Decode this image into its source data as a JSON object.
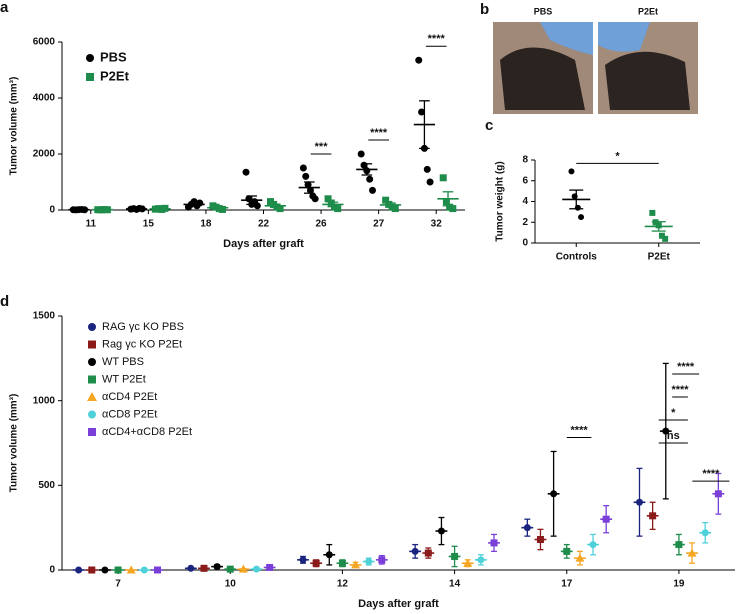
{
  "panel_b": {
    "label": "b",
    "photos": [
      "PBS",
      "P2Et"
    ]
  },
  "chart_data": [
    {
      "type": "dot",
      "label": "a",
      "x_label": "Days after graft",
      "y_label": "Tumor volume (mm³)",
      "categories": [
        "11",
        "15",
        "18",
        "22",
        "26",
        "27",
        "32"
      ],
      "ylim": [
        0,
        6000
      ],
      "yticks": [
        0,
        2000,
        4000,
        6000
      ],
      "legend": "upper left",
      "series": [
        {
          "name": "PBS",
          "color": "#000000",
          "marker": "circle",
          "values": [
            10,
            40,
            200,
            350,
            800,
            1450,
            3050
          ],
          "errors": [
            5,
            10,
            40,
            150,
            200,
            200,
            850
          ],
          "points": [
            [
              10,
              5,
              15,
              20,
              10
            ],
            [
              30,
              50,
              20,
              60,
              40
            ],
            [
              100,
              200,
              300,
              150,
              250
            ],
            [
              1350,
              400,
              200,
              300,
              150
            ],
            [
              1500,
              1200,
              900,
              700,
              500,
              400
            ],
            [
              2000,
              1600,
              1400,
              1100,
              700
            ],
            [
              5350,
              3500,
              2200,
              1450,
              1000
            ]
          ]
        },
        {
          "name": "P2Et",
          "color": "#1e8c4a",
          "marker": "square",
          "values": [
            10,
            40,
            80,
            150,
            200,
            180,
            400
          ],
          "errors": [
            5,
            10,
            30,
            60,
            80,
            70,
            250
          ],
          "points": [
            [
              10,
              5,
              15,
              10
            ],
            [
              30,
              50,
              20,
              60
            ],
            [
              150,
              100,
              50,
              20
            ],
            [
              300,
              200,
              100,
              50
            ],
            [
              400,
              250,
              100,
              50
            ],
            [
              350,
              200,
              100,
              50
            ],
            [
              1150,
              300,
              100,
              50
            ]
          ]
        }
      ],
      "annotations": [
        {
          "text": "***",
          "category": 4
        },
        {
          "text": "****",
          "category": 5
        },
        {
          "text": "****",
          "category": 6
        }
      ]
    },
    {
      "type": "dot",
      "label": "c",
      "y_label": "Tumor weight (g)",
      "categories": [
        "Controls",
        "P2Et"
      ],
      "ylim": [
        0,
        8
      ],
      "yticks": [
        0,
        2,
        4,
        6,
        8
      ],
      "series": [
        {
          "colors": [
            "#000000",
            "#1e8c4a"
          ],
          "markers": [
            "circle",
            "square"
          ],
          "values": [
            4.2,
            1.6
          ],
          "errors": [
            0.9,
            0.45
          ],
          "points": [
            [
              6.9,
              4.5,
              3.4,
              2.5
            ],
            [
              2.9,
              2.0,
              1.7,
              0.7,
              0.4
            ]
          ]
        }
      ],
      "annotations": [
        {
          "text": "*",
          "categories": [
            0,
            1
          ]
        }
      ]
    },
    {
      "type": "dot",
      "label": "d",
      "x_label": "Days after graft",
      "y_label": "Tumor volume (mm³)",
      "categories": [
        "7",
        "10",
        "12",
        "14",
        "17",
        "19"
      ],
      "ylim": [
        0,
        1500
      ],
      "yticks": [
        0,
        500,
        1000,
        1500
      ],
      "legend": "upper left",
      "series": [
        {
          "name": "RAG γc KO PBS",
          "color": "#1a237e",
          "marker": "circle",
          "values": [
            0,
            10,
            60,
            110,
            250,
            400
          ],
          "errors": [
            0,
            5,
            20,
            40,
            50,
            200
          ]
        },
        {
          "name": "Rag γc  KO P2Et",
          "color": "#8b1a1a",
          "marker": "square",
          "values": [
            0,
            10,
            40,
            100,
            180,
            320
          ],
          "errors": [
            0,
            5,
            20,
            30,
            60,
            80
          ]
        },
        {
          "name": "WT PBS",
          "color": "#000000",
          "marker": "circle",
          "values": [
            0,
            20,
            90,
            230,
            450,
            820
          ],
          "errors": [
            0,
            10,
            60,
            80,
            250,
            400
          ]
        },
        {
          "name": "WT P2Et",
          "color": "#1e8c4a",
          "marker": "square",
          "values": [
            0,
            5,
            40,
            80,
            110,
            150
          ],
          "errors": [
            0,
            5,
            20,
            60,
            40,
            60
          ]
        },
        {
          "name": "αCD4 P2Et",
          "color": "#f5a623",
          "marker": "triangle",
          "values": [
            0,
            5,
            30,
            40,
            70,
            100
          ],
          "errors": [
            0,
            3,
            15,
            20,
            40,
            60
          ]
        },
        {
          "name": "αCD8 P2Et",
          "color": "#4fd1d9",
          "marker": "circle",
          "values": [
            0,
            5,
            50,
            60,
            150,
            220
          ],
          "errors": [
            0,
            5,
            20,
            30,
            60,
            60
          ]
        },
        {
          "name": "αCD4+αCD8 P2Et",
          "color": "#7b3fd9",
          "marker": "square",
          "values": [
            0,
            15,
            60,
            160,
            300,
            450
          ],
          "errors": [
            0,
            5,
            25,
            50,
            80,
            120
          ]
        }
      ],
      "annotations": [
        {
          "text": "****",
          "category": 4
        },
        {
          "text": "ns",
          "category": 5
        },
        {
          "text": "*",
          "category": 5
        },
        {
          "text": "****",
          "category": 5
        },
        {
          "text": "****",
          "category": 5
        },
        {
          "text": "****",
          "category": 5,
          "side": "right"
        }
      ]
    }
  ]
}
